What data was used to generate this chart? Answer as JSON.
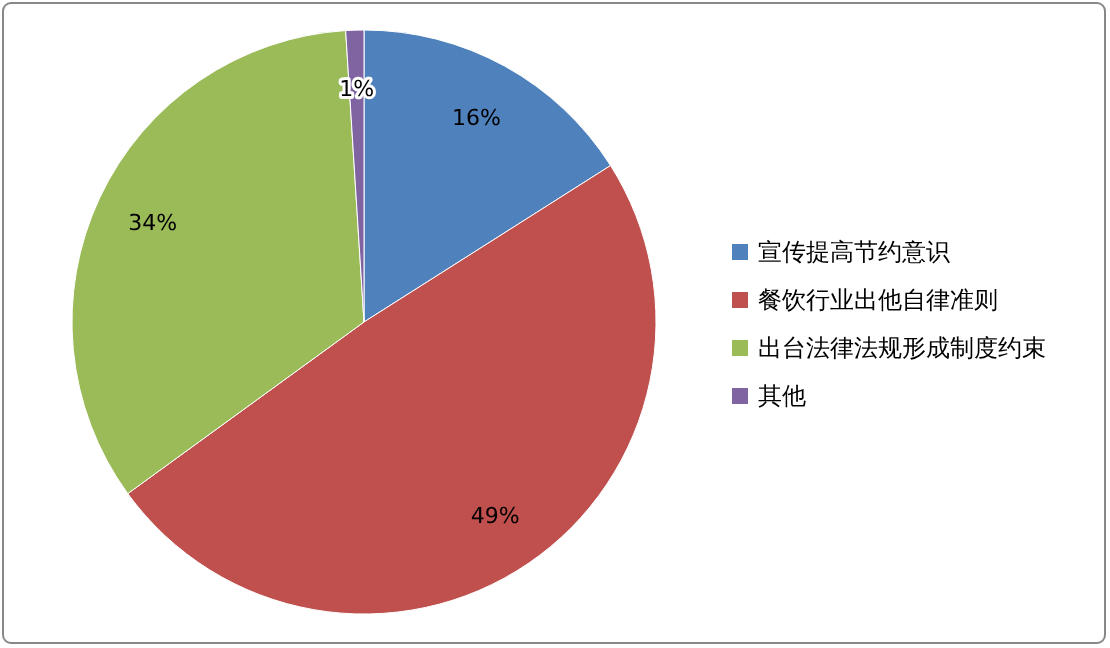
{
  "chart_data": {
    "type": "pie",
    "categories": [
      "宣传提高节约意识",
      "餐饮行业出他自律准则",
      "出台法律法规形成制度约束",
      "其他"
    ],
    "values": [
      16,
      49,
      34,
      1
    ],
    "colors": [
      "#4f81bd",
      "#c0504d",
      "#9bbb59",
      "#8064a2"
    ],
    "value_labels": [
      "16%",
      "49%",
      "34%",
      "1%"
    ],
    "legend": "right"
  }
}
